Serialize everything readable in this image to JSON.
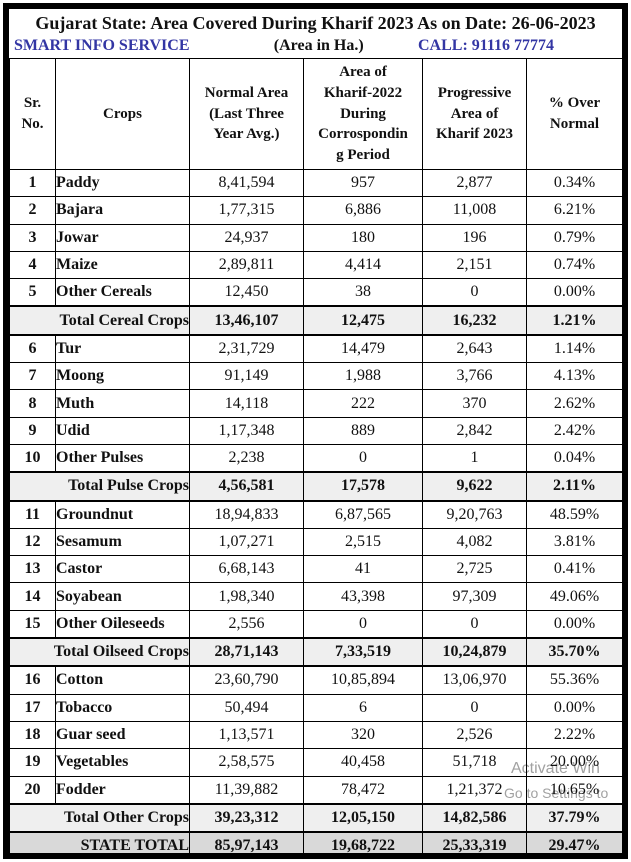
{
  "header": {
    "title": "Gujarat State: Area Covered During Kharif 2023 As on Date: 26-06-2023",
    "brand": "SMART INFO SERVICE",
    "unit_note": "(Area in Ha.)",
    "call": "CALL: 91116 77774"
  },
  "colors": {
    "accent_blue": "#3336a4",
    "section_total_bg": "#efefef",
    "state_total_bg": "#d9d9d9",
    "border_black": "#000000"
  },
  "table": {
    "columns": [
      "Sr.\nNo.",
      "Crops",
      "Normal Area\n(Last Three\nYear Avg.)",
      "Area of\nKharif-2022\nDuring\nCorrospondin\ng Period",
      "Progressive\nArea of\nKharif 2023",
      "% Over\nNormal"
    ],
    "rows": [
      {
        "type": "data",
        "sr": "1",
        "crop": "Paddy",
        "normal": "8,41,594",
        "kharif2022": "957",
        "kharif2023": "2,877",
        "pct": "0.34%"
      },
      {
        "type": "data",
        "sr": "2",
        "crop": "Bajara",
        "normal": "1,77,315",
        "kharif2022": "6,886",
        "kharif2023": "11,008",
        "pct": "6.21%"
      },
      {
        "type": "data",
        "sr": "3",
        "crop": "Jowar",
        "normal": "24,937",
        "kharif2022": "180",
        "kharif2023": "196",
        "pct": "0.79%"
      },
      {
        "type": "data",
        "sr": "4",
        "crop": "Maize",
        "normal": "2,89,811",
        "kharif2022": "4,414",
        "kharif2023": "2,151",
        "pct": "0.74%"
      },
      {
        "type": "data",
        "sr": "5",
        "crop": "Other Cereals",
        "normal": "12,450",
        "kharif2022": "38",
        "kharif2023": "0",
        "pct": "0.00%"
      },
      {
        "type": "total",
        "label": "Total Cereal Crops",
        "normal": "13,46,107",
        "kharif2022": "12,475",
        "kharif2023": "16,232",
        "pct": "1.21%"
      },
      {
        "type": "data",
        "sr": "6",
        "crop": "Tur",
        "normal": "2,31,729",
        "kharif2022": "14,479",
        "kharif2023": "2,643",
        "pct": "1.14%"
      },
      {
        "type": "data",
        "sr": "7",
        "crop": "Moong",
        "normal": "91,149",
        "kharif2022": "1,988",
        "kharif2023": "3,766",
        "pct": "4.13%"
      },
      {
        "type": "data",
        "sr": "8",
        "crop": "Muth",
        "normal": "14,118",
        "kharif2022": "222",
        "kharif2023": "370",
        "pct": "2.62%"
      },
      {
        "type": "data",
        "sr": "9",
        "crop": "Udid",
        "normal": "1,17,348",
        "kharif2022": "889",
        "kharif2023": "2,842",
        "pct": "2.42%"
      },
      {
        "type": "data",
        "sr": "10",
        "crop": "Other Pulses",
        "normal": "2,238",
        "kharif2022": "0",
        "kharif2023": "1",
        "pct": "0.04%"
      },
      {
        "type": "total",
        "label": "Total Pulse Crops",
        "normal": "4,56,581",
        "kharif2022": "17,578",
        "kharif2023": "9,622",
        "pct": "2.11%"
      },
      {
        "type": "data",
        "sr": "11",
        "crop": "Groundnut",
        "normal": "18,94,833",
        "kharif2022": "6,87,565",
        "kharif2023": "9,20,763",
        "pct": "48.59%"
      },
      {
        "type": "data",
        "sr": "12",
        "crop": "Sesamum",
        "normal": "1,07,271",
        "kharif2022": "2,515",
        "kharif2023": "4,082",
        "pct": "3.81%"
      },
      {
        "type": "data",
        "sr": "13",
        "crop": "Castor",
        "normal": "6,68,143",
        "kharif2022": "41",
        "kharif2023": "2,725",
        "pct": "0.41%"
      },
      {
        "type": "data",
        "sr": "14",
        "crop": "Soyabean",
        "normal": "1,98,340",
        "kharif2022": "43,398",
        "kharif2023": "97,309",
        "pct": "49.06%"
      },
      {
        "type": "data",
        "sr": "15",
        "crop": "Other Oileseeds",
        "normal": "2,556",
        "kharif2022": "0",
        "kharif2023": "0",
        "pct": "0.00%"
      },
      {
        "type": "total",
        "label": "Total Oilseed Crops",
        "normal": "28,71,143",
        "kharif2022": "7,33,519",
        "kharif2023": "10,24,879",
        "pct": "35.70%"
      },
      {
        "type": "data",
        "sr": "16",
        "crop": "Cotton",
        "normal": "23,60,790",
        "kharif2022": "10,85,894",
        "kharif2023": "13,06,970",
        "pct": "55.36%"
      },
      {
        "type": "data",
        "sr": "17",
        "crop": "Tobacco",
        "normal": "50,494",
        "kharif2022": "6",
        "kharif2023": "0",
        "pct": "0.00%"
      },
      {
        "type": "data",
        "sr": "18",
        "crop": "Guar seed",
        "normal": "1,13,571",
        "kharif2022": "320",
        "kharif2023": "2,526",
        "pct": "2.22%"
      },
      {
        "type": "data",
        "sr": "19",
        "crop": "Vegetables",
        "normal": "2,58,575",
        "kharif2022": "40,458",
        "kharif2023": "51,718",
        "pct": "20.00%"
      },
      {
        "type": "data",
        "sr": "20",
        "crop": "Fodder",
        "normal": "11,39,882",
        "kharif2022": "78,472",
        "kharif2023": "1,21,372",
        "pct": "10.65%"
      },
      {
        "type": "total",
        "label": "Total Other Crops",
        "normal": "39,23,312",
        "kharif2022": "12,05,150",
        "kharif2023": "14,82,586",
        "pct": "37.79%"
      },
      {
        "type": "grand",
        "label": "STATE TOTAL",
        "normal": "85,97,143",
        "kharif2022": "19,68,722",
        "kharif2023": "25,33,319",
        "pct": "29.47%"
      }
    ]
  },
  "watermark": {
    "line1": "Activate Win",
    "line2": "Go to Settings to"
  }
}
